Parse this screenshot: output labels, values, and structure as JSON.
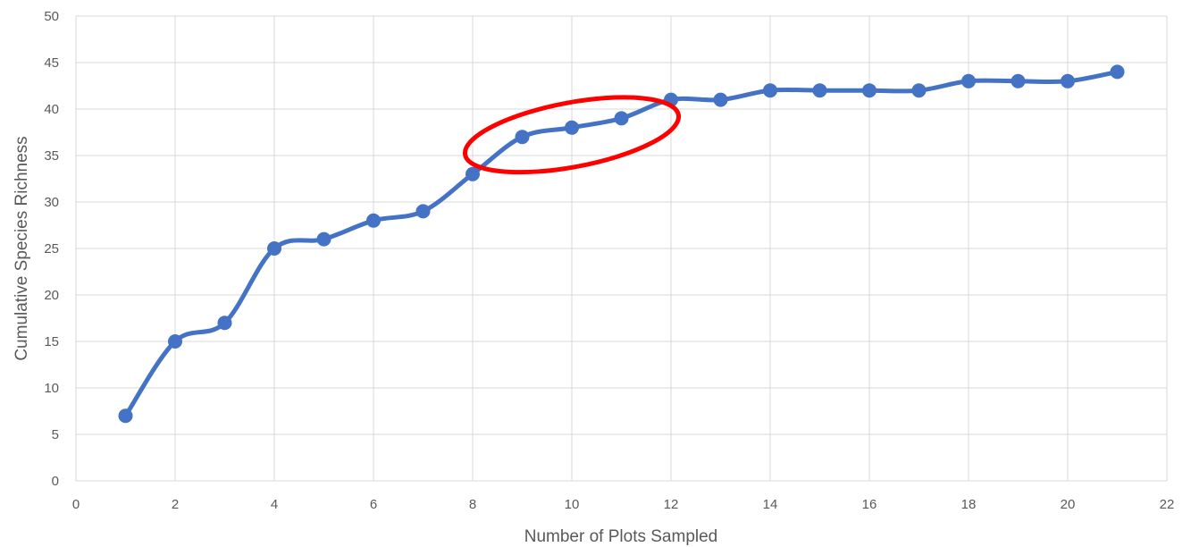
{
  "chart_data": {
    "type": "line",
    "title": "",
    "xlabel": "Number of Plots Sampled",
    "ylabel": "Cumulative Species Richness",
    "xlim": [
      0,
      22
    ],
    "ylim": [
      0,
      50
    ],
    "x_ticks": [
      0,
      2,
      4,
      6,
      8,
      10,
      12,
      14,
      16,
      18,
      20,
      22
    ],
    "y_ticks": [
      0,
      5,
      10,
      15,
      20,
      25,
      30,
      35,
      40,
      45,
      50
    ],
    "grid": true,
    "legend": "none",
    "smoothed": true,
    "series": [
      {
        "x": [
          1,
          2,
          3,
          4,
          5,
          6,
          7,
          8,
          9,
          10,
          11,
          12,
          13,
          14,
          15,
          16,
          17,
          18,
          19,
          20,
          21
        ],
        "values": [
          7,
          15,
          17,
          25,
          26,
          28,
          29,
          33,
          37,
          38,
          39,
          41,
          41,
          42,
          42,
          42,
          42,
          43,
          43,
          43,
          44
        ],
        "color": "#4472c4",
        "marker": "circle"
      }
    ],
    "annotations": [
      {
        "type": "ellipse",
        "color": "#ff0000",
        "highlights_x": [
          9,
          10,
          11
        ]
      }
    ],
    "colors": {
      "grid": "#d9d9d9",
      "tick_text": "#595959",
      "axis_title": "#595959"
    }
  }
}
